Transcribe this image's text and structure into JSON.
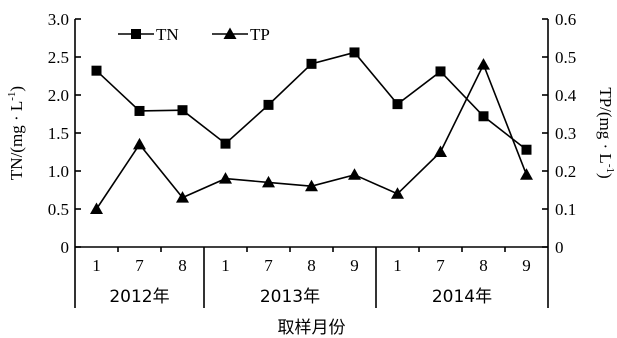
{
  "chart_data": {
    "type": "line",
    "xlabel": "取样月份",
    "ylabel_left": "TN/(mg · L",
    "ylabel_left_sup": "-1",
    "ylabel_left_tail": ")",
    "ylabel_right": "TP/(mg · L",
    "ylabel_right_sup": "-1",
    "ylabel_right_tail": ")",
    "ylim_left": [
      0,
      3.0
    ],
    "ylim_right": [
      0,
      0.6
    ],
    "yticks_left": [
      "0",
      "0.5",
      "1.0",
      "1.5",
      "2.0",
      "2.5",
      "3.0"
    ],
    "yticks_right": [
      "0",
      "0.1",
      "0.2",
      "0.3",
      "0.4",
      "0.5",
      "0.6"
    ],
    "categories": [
      "1",
      "7",
      "8",
      "1",
      "7",
      "8",
      "9",
      "1",
      "7",
      "8",
      "9"
    ],
    "groups": [
      {
        "label": "2012年",
        "count": 3
      },
      {
        "label": "2013年",
        "count": 4
      },
      {
        "label": "2014年",
        "count": 4
      }
    ],
    "grid": false,
    "legend_position": "top-left",
    "series": [
      {
        "name": "TN",
        "axis": "left",
        "marker": "square",
        "values": [
          2.32,
          1.79,
          1.8,
          1.36,
          1.87,
          2.41,
          2.56,
          1.88,
          2.31,
          1.72,
          1.28
        ]
      },
      {
        "name": "TP",
        "axis": "right",
        "marker": "triangle",
        "values": [
          0.1,
          0.27,
          0.13,
          0.18,
          0.17,
          0.16,
          0.19,
          0.14,
          0.25,
          0.48,
          0.19
        ]
      }
    ]
  }
}
